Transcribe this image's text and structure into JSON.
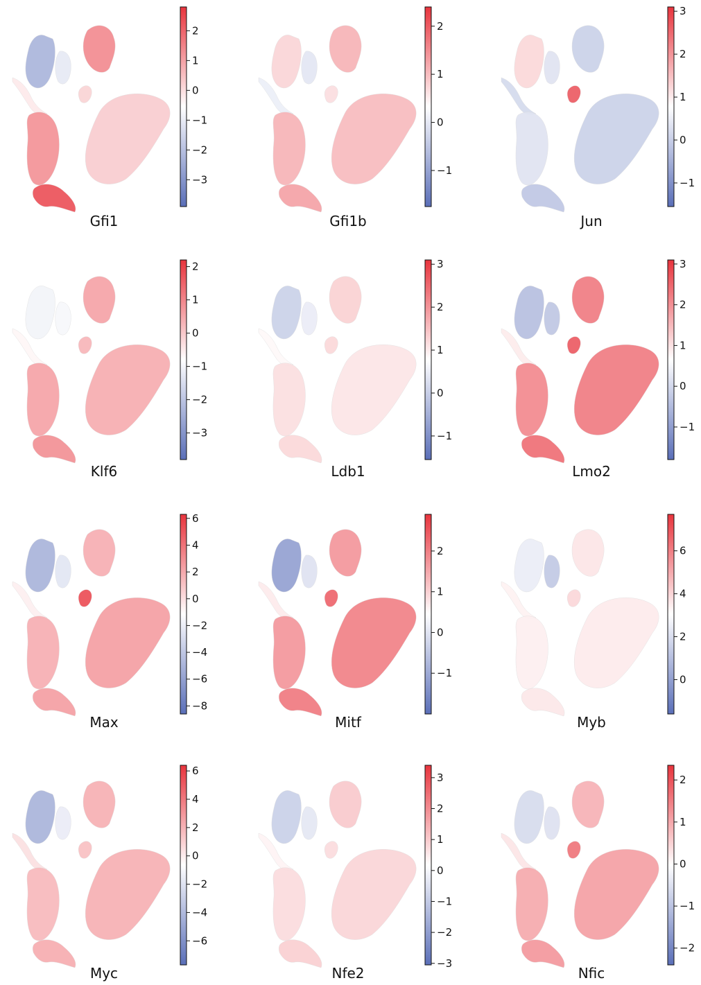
{
  "colormap": {
    "low": "#5a6fb8",
    "mid": "#ffffff",
    "high": "#e8343d"
  },
  "chart_data": [
    {
      "type": "scatter",
      "title": "Gfi1",
      "vmin": -3.9,
      "vmax": 2.8,
      "ticks": [
        {
          "v": 2,
          "label": "2"
        },
        {
          "v": 1,
          "label": "1"
        },
        {
          "v": 0,
          "label": "0"
        },
        {
          "v": -1,
          "label": "−1"
        },
        {
          "v": -2,
          "label": "−2"
        },
        {
          "v": -3,
          "label": "−3"
        }
      ],
      "values": [
        -2.0,
        0.3,
        1.6,
        -0.6,
        0.6,
        0.7,
        1.5,
        2.4,
        2.2,
        0.5
      ]
    },
    {
      "type": "scatter",
      "title": "Gfi1b",
      "vmin": -1.75,
      "vmax": 2.4,
      "ticks": [
        {
          "v": 2,
          "label": "2"
        },
        {
          "v": 1,
          "label": "1"
        },
        {
          "v": 0,
          "label": "0"
        },
        {
          "v": -1,
          "label": "−1"
        }
      ],
      "values": [
        0.5,
        -0.2,
        0.9,
        -0.3,
        0.4,
        0.8,
        0.9,
        1.1,
        1.0,
        0.3
      ]
    },
    {
      "type": "scatter",
      "title": "Jun",
      "vmin": -1.55,
      "vmax": 3.1,
      "ticks": [
        {
          "v": 3,
          "label": "3"
        },
        {
          "v": 2,
          "label": "2"
        },
        {
          "v": 1,
          "label": "1"
        },
        {
          "v": 0,
          "label": "0"
        },
        {
          "v": -1,
          "label": "−1"
        }
      ],
      "values": [
        0.6,
        -0.4,
        -0.5,
        -0.3,
        2.5,
        -0.5,
        -0.3,
        -0.6,
        -0.5,
        -0.2
      ]
    },
    {
      "type": "scatter",
      "title": "Klf6",
      "vmin": -3.8,
      "vmax": 2.2,
      "ticks": [
        {
          "v": 2,
          "label": "2"
        },
        {
          "v": 1,
          "label": "1"
        },
        {
          "v": 0,
          "label": "0"
        },
        {
          "v": -1,
          "label": "−1"
        },
        {
          "v": -2,
          "label": "−2"
        },
        {
          "v": -3,
          "label": "−3"
        }
      ],
      "values": [
        -0.3,
        0.1,
        1.0,
        -0.2,
        0.8,
        0.9,
        1.0,
        1.2,
        1.1,
        -0.2
      ]
    },
    {
      "type": "scatter",
      "title": "Ldb1",
      "vmin": -1.55,
      "vmax": 3.1,
      "ticks": [
        {
          "v": 3,
          "label": "3"
        },
        {
          "v": 2,
          "label": "2"
        },
        {
          "v": 1,
          "label": "1"
        },
        {
          "v": 0,
          "label": "0"
        },
        {
          "v": -1,
          "label": "−1"
        }
      ],
      "values": [
        -0.5,
        0.1,
        0.7,
        -0.2,
        0.6,
        0.4,
        0.5,
        0.6,
        0.5,
        0.5
      ]
    },
    {
      "type": "scatter",
      "title": "Lmo2",
      "vmin": -1.8,
      "vmax": 3.1,
      "ticks": [
        {
          "v": 3,
          "label": "3"
        },
        {
          "v": 2,
          "label": "2"
        },
        {
          "v": 1,
          "label": "1"
        },
        {
          "v": 0,
          "label": "0"
        },
        {
          "v": -1,
          "label": "−1"
        }
      ],
      "values": [
        -0.8,
        0.3,
        2.0,
        -0.7,
        2.5,
        2.0,
        1.8,
        2.2,
        2.0,
        1.9
      ]
    },
    {
      "type": "scatter",
      "title": "Max",
      "vmin": -8.6,
      "vmax": 6.3,
      "ticks": [
        {
          "v": 6,
          "label": "6"
        },
        {
          "v": 4,
          "label": "4"
        },
        {
          "v": 2,
          "label": "2"
        },
        {
          "v": 0,
          "label": "0"
        },
        {
          "v": -2,
          "label": "−2"
        },
        {
          "v": -4,
          "label": "−4"
        },
        {
          "v": -6,
          "label": "−6"
        },
        {
          "v": -8,
          "label": "−8"
        }
      ],
      "values": [
        -4.5,
        0.5,
        2.5,
        -1.5,
        5.5,
        3.0,
        2.5,
        3.0,
        2.8,
        3.5
      ]
    },
    {
      "type": "scatter",
      "title": "Mitf",
      "vmin": -2.0,
      "vmax": 2.9,
      "ticks": [
        {
          "v": 2,
          "label": "2"
        },
        {
          "v": 1,
          "label": "1"
        },
        {
          "v": 0,
          "label": "0"
        },
        {
          "v": -1,
          "label": "−1"
        }
      ],
      "values": [
        -1.3,
        0.3,
        1.5,
        -0.4,
        2.2,
        1.8,
        1.5,
        1.9,
        1.7,
        1.2
      ]
    },
    {
      "type": "scatter",
      "title": "Myb",
      "vmin": -1.6,
      "vmax": 7.7,
      "ticks": [
        {
          "v": 6,
          "label": "6"
        },
        {
          "v": 4,
          "label": "4"
        },
        {
          "v": 2,
          "label": "2"
        },
        {
          "v": 0,
          "label": "0"
        }
      ],
      "values": [
        -0.2,
        0.5,
        1.0,
        -0.6,
        1.5,
        0.8,
        0.6,
        0.9,
        0.8,
        4.0
      ]
    },
    {
      "type": "scatter",
      "title": "Myc",
      "vmin": -7.7,
      "vmax": 6.4,
      "ticks": [
        {
          "v": 6,
          "label": "6"
        },
        {
          "v": 4,
          "label": "4"
        },
        {
          "v": 2,
          "label": "2"
        },
        {
          "v": 0,
          "label": "0"
        },
        {
          "v": -2,
          "label": "−2"
        },
        {
          "v": -4,
          "label": "−4"
        },
        {
          "v": -6,
          "label": "−6"
        }
      ],
      "values": [
        -4.0,
        1.0,
        2.5,
        -1.0,
        2.0,
        2.5,
        2.2,
        2.6,
        2.5,
        4.5
      ]
    },
    {
      "type": "scatter",
      "title": "Nfe2",
      "vmin": -3.05,
      "vmax": 3.4,
      "ticks": [
        {
          "v": 3,
          "label": "3"
        },
        {
          "v": 2,
          "label": "2"
        },
        {
          "v": 1,
          "label": "1"
        },
        {
          "v": 0,
          "label": "0"
        },
        {
          "v": -1,
          "label": "−1"
        },
        {
          "v": -2,
          "label": "−2"
        },
        {
          "v": -3,
          "label": "−3"
        }
      ],
      "values": [
        -1.0,
        0.2,
        0.9,
        -0.5,
        0.6,
        0.7,
        0.6,
        0.8,
        0.7,
        0.3
      ]
    },
    {
      "type": "scatter",
      "title": "Nfic",
      "vmin": -2.4,
      "vmax": 2.35,
      "ticks": [
        {
          "v": 2,
          "label": "2"
        },
        {
          "v": 1,
          "label": "1"
        },
        {
          "v": 0,
          "label": "0"
        },
        {
          "v": -1,
          "label": "−1"
        },
        {
          "v": -2,
          "label": "−2"
        }
      ],
      "values": [
        -0.6,
        0.3,
        0.9,
        -0.5,
        1.6,
        1.1,
        1.0,
        1.2,
        1.1,
        0.9
      ]
    }
  ]
}
